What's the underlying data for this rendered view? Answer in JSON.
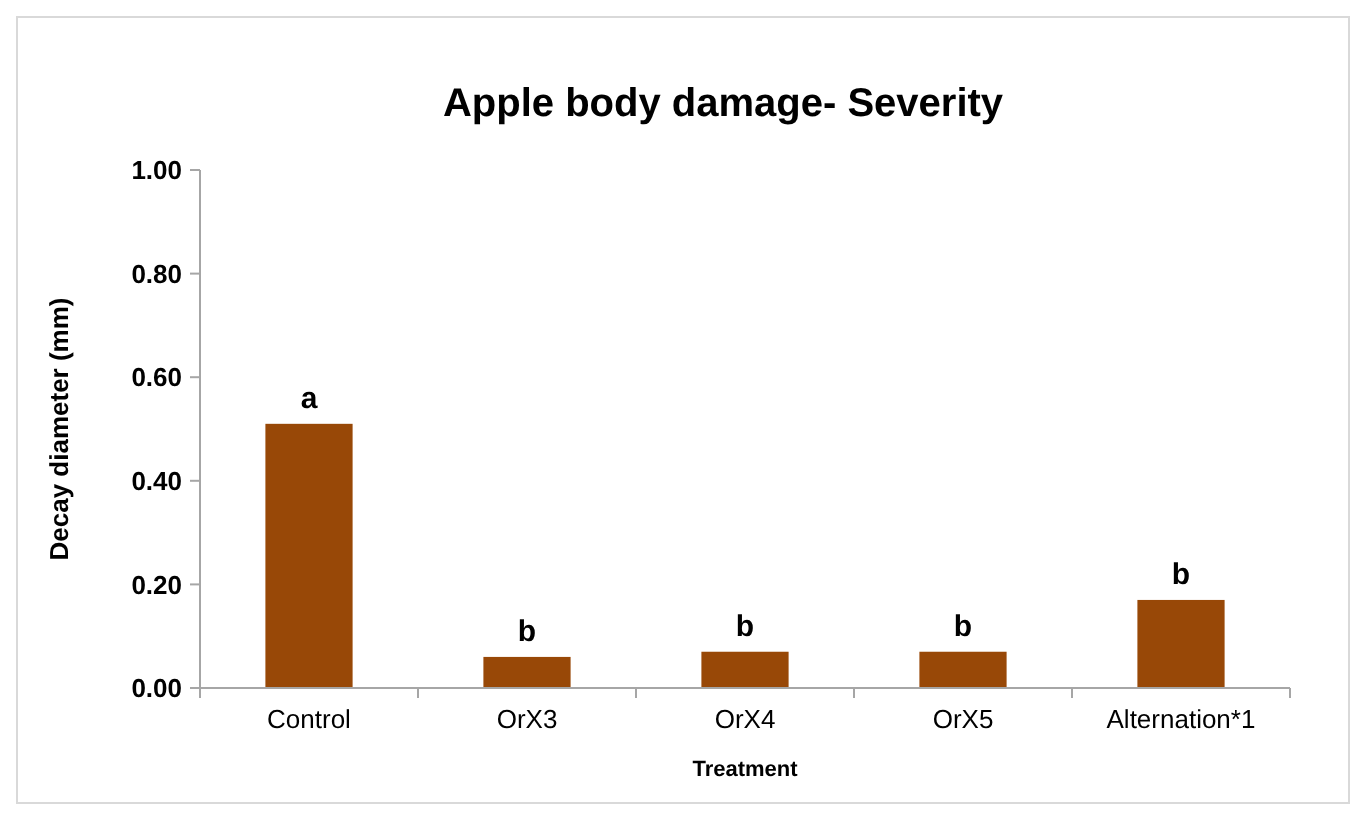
{
  "chart_data": {
    "type": "bar",
    "title": "Apple body damage- Severity",
    "xlabel": "Treatment",
    "ylabel": "Decay diameter (mm)",
    "categories": [
      "Control",
      "OrX3",
      "OrX4",
      "OrX5",
      "Alternation*1"
    ],
    "values": [
      0.51,
      0.06,
      0.07,
      0.07,
      0.17
    ],
    "color": "#984807",
    "ylim": [
      0,
      1
    ],
    "yticks": [
      {
        "value": 0,
        "label": "0.00"
      },
      {
        "value": 0.2,
        "label": "0.20"
      },
      {
        "value": 0.4,
        "label": "0.40"
      },
      {
        "value": 0.6,
        "label": "0.60"
      },
      {
        "value": 0.8,
        "label": "0.80"
      },
      {
        "value": 1,
        "label": "1.00"
      }
    ],
    "grid": false,
    "annotations": [
      {
        "text": "a",
        "x": "Control",
        "y": 0.51
      },
      {
        "text": "b",
        "x": "OrX3",
        "y": 0.06
      },
      {
        "text": "b",
        "x": "OrX4",
        "y": 0.07
      },
      {
        "text": "b",
        "x": "OrX5",
        "y": 0.07
      },
      {
        "text": "b",
        "x": "Alternation*1",
        "y": 0.17
      }
    ]
  }
}
